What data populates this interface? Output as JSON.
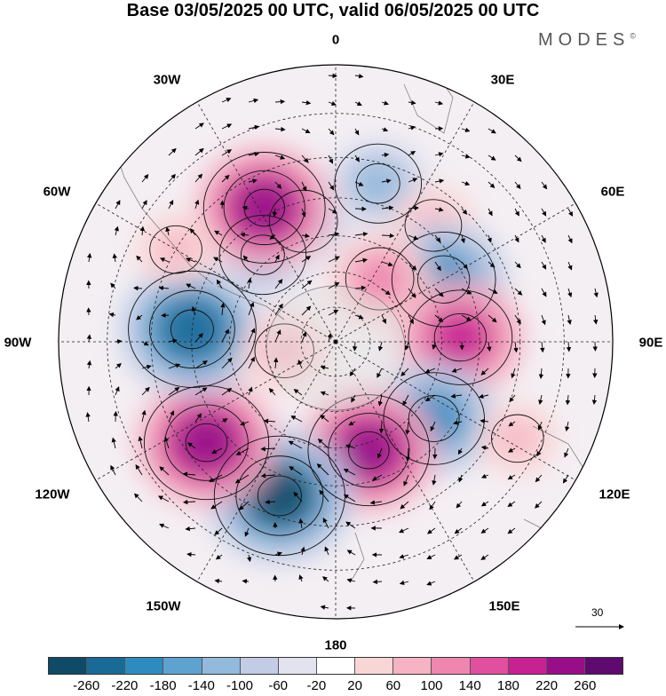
{
  "title": "Base 03/05/2025 00 UTC, valid 06/05/2025 00 UTC",
  "brand": {
    "name": "MODES",
    "mark": "©"
  },
  "longitude_labels": [
    {
      "id": "0",
      "text": "0"
    },
    {
      "id": "30E",
      "text": "30E"
    },
    {
      "id": "60E",
      "text": "60E"
    },
    {
      "id": "90E",
      "text": "90E"
    },
    {
      "id": "120E",
      "text": "120E"
    },
    {
      "id": "150E",
      "text": "150E"
    },
    {
      "id": "180",
      "text": "180"
    },
    {
      "id": "150W",
      "text": "150W"
    },
    {
      "id": "120W",
      "text": "120W"
    },
    {
      "id": "90W",
      "text": "90W"
    },
    {
      "id": "60W",
      "text": "60W"
    },
    {
      "id": "30W",
      "text": "30W"
    }
  ],
  "vector_reference": {
    "value": "30"
  },
  "colorbar": {
    "colors": [
      "#0f4a66",
      "#1a6a98",
      "#2d8bc0",
      "#5ea3cf",
      "#93b9dc",
      "#c2cce5",
      "#e3e3f0",
      "#ffffff",
      "#f9d6d6",
      "#f5b3c3",
      "#ee86b0",
      "#e0509f",
      "#c72292",
      "#970e88",
      "#5e0a6f"
    ],
    "ticks": [
      "-260",
      "-220",
      "-180",
      "-140",
      "-100",
      "-60",
      "-20",
      "20",
      "60",
      "100",
      "140",
      "180",
      "220",
      "260"
    ]
  },
  "map": {
    "projection": "south-polar-stereographic",
    "anomaly_centers": [
      {
        "lon": 15,
        "lat": -45,
        "value": -140
      },
      {
        "lon": -15,
        "lat": -55,
        "value": -130
      },
      {
        "lon": 40,
        "lat": -48,
        "value": 80
      },
      {
        "lon": 60,
        "lat": -55,
        "value": -200
      },
      {
        "lon": 35,
        "lat": -68,
        "value": 130
      },
      {
        "lon": 88,
        "lat": -55,
        "value": 200
      },
      {
        "lon": 128,
        "lat": -55,
        "value": -190
      },
      {
        "lon": 118,
        "lat": -35,
        "value": 60
      },
      {
        "lon": 163,
        "lat": -58,
        "value": 230
      },
      {
        "lon": -160,
        "lat": -45,
        "value": -270
      },
      {
        "lon": -128,
        "lat": -45,
        "value": 240
      },
      {
        "lon": -85,
        "lat": -50,
        "value": -250
      },
      {
        "lon": -40,
        "lat": -58,
        "value": -140
      },
      {
        "lon": -28,
        "lat": -48,
        "value": 230
      },
      {
        "lon": -60,
        "lat": -40,
        "value": 60
      },
      {
        "lon": -100,
        "lat": -75,
        "value": 90
      }
    ]
  }
}
